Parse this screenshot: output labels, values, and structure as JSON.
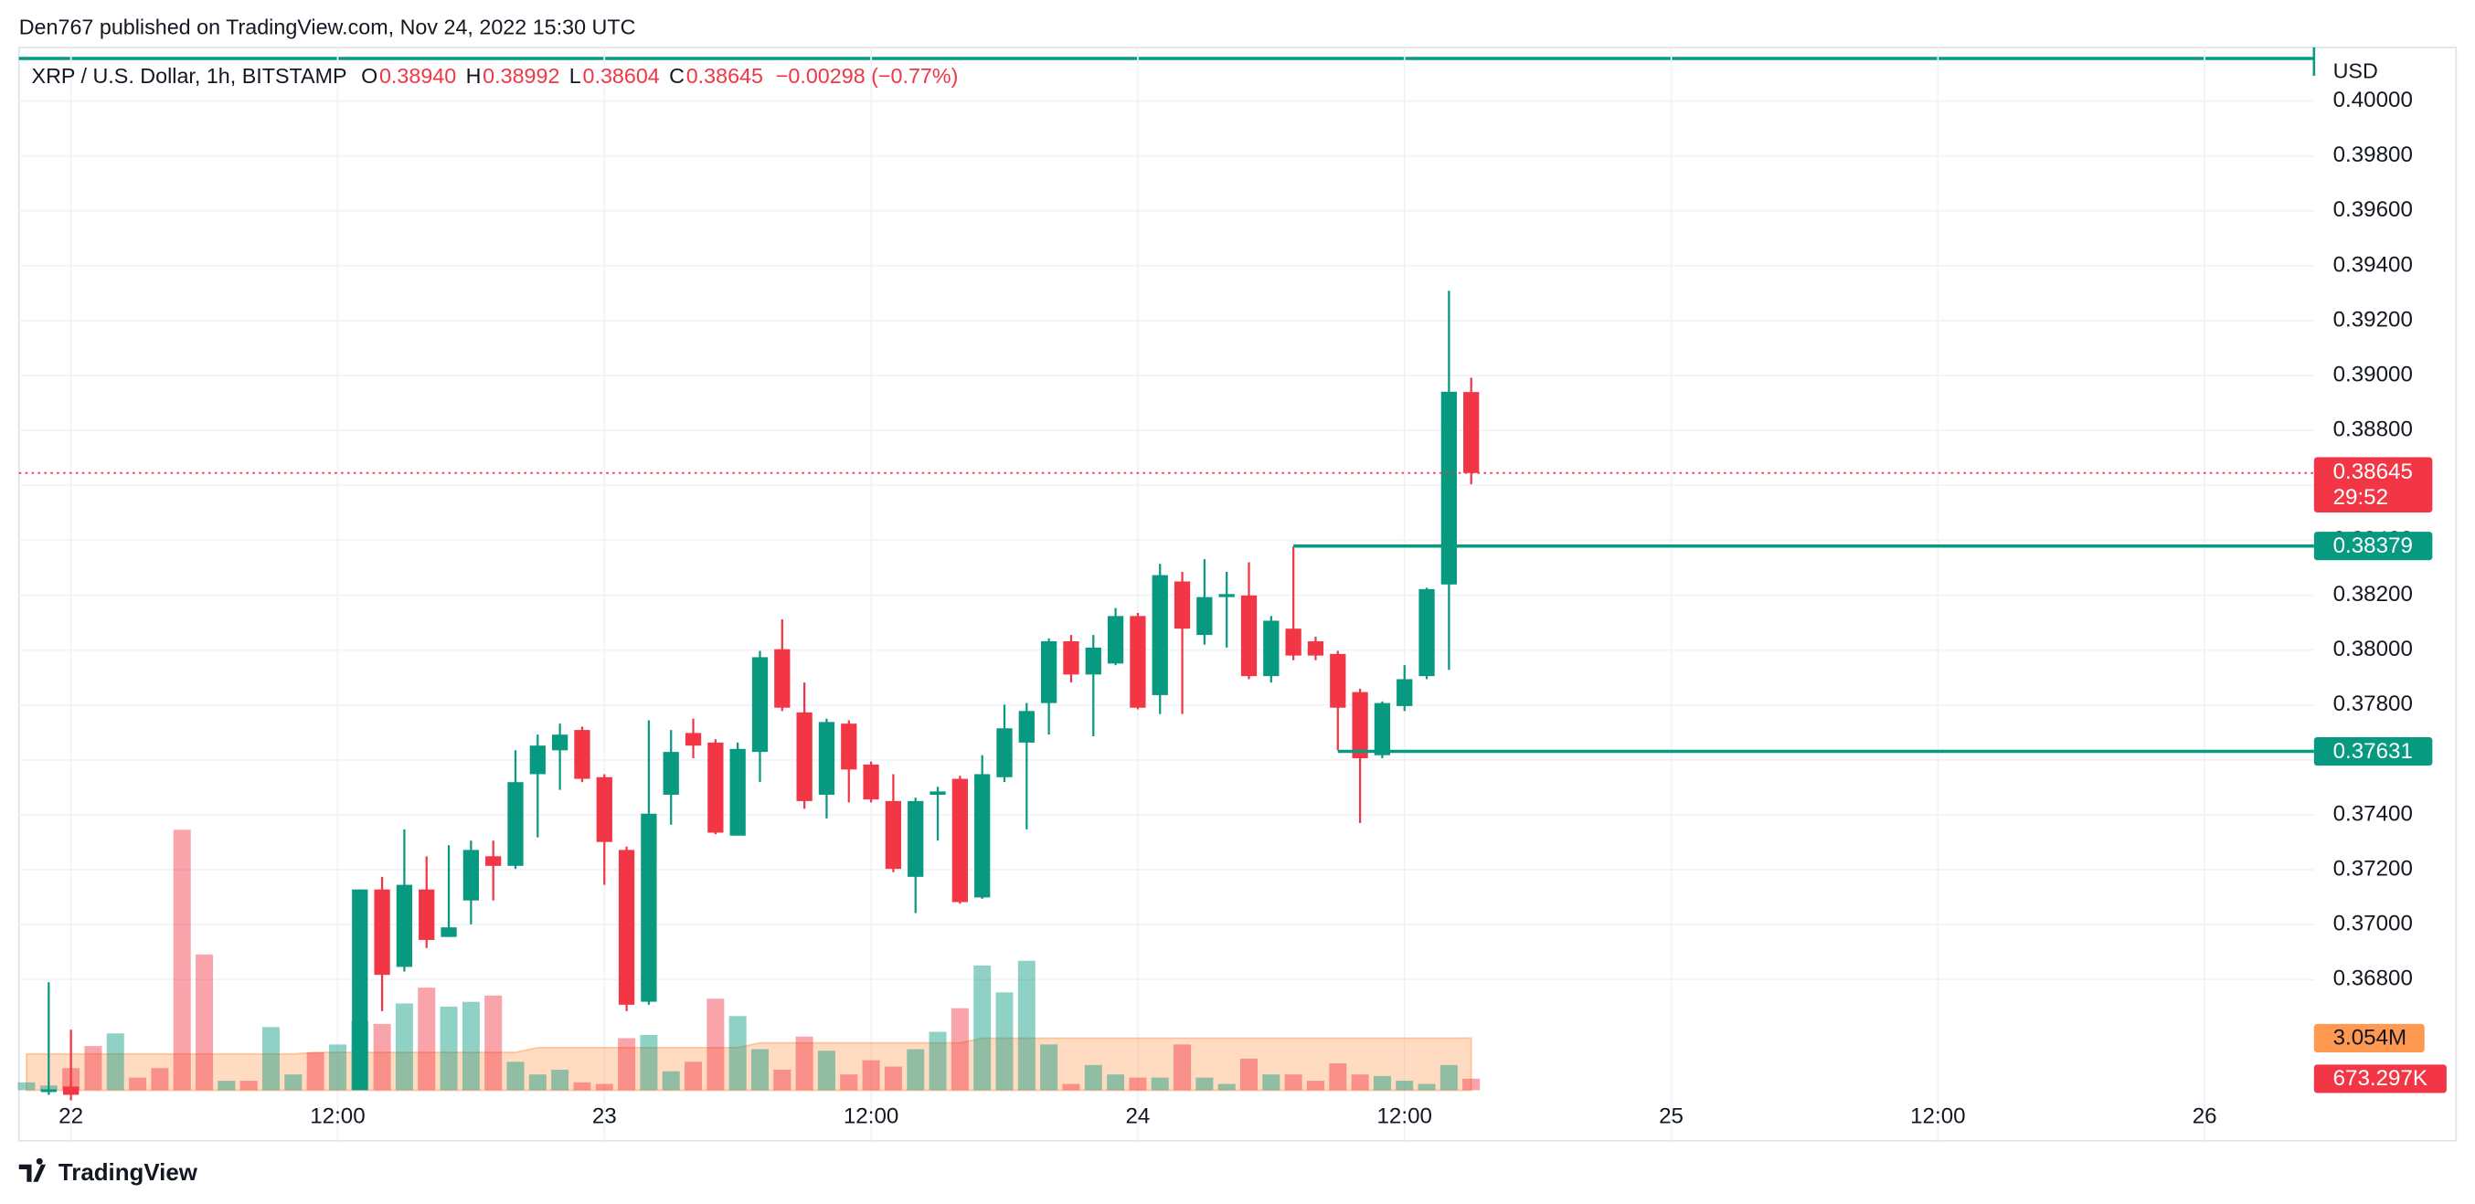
{
  "chart_data": {
    "type": "candlestick",
    "header": "Den767 published on TradingView.com, Nov 24, 2022 15:30 UTC",
    "symbol": "XRP / U.S. Dollar, 1h, BITSTAMP",
    "ohlc_legend": [
      {
        "key": "O",
        "value": 0.3894,
        "label": "0.38940"
      },
      {
        "key": "H",
        "value": 0.38992,
        "label": "0.38992"
      },
      {
        "key": "L",
        "value": 0.38604,
        "label": "0.38604"
      },
      {
        "key": "C",
        "value": 0.38645,
        "label": "0.38645"
      }
    ],
    "change_label": "−0.00298 (−0.77%)",
    "currency": "USD",
    "footer": "TradingView",
    "up_color": "#089981",
    "down_color": "#f23645",
    "grid": true,
    "x": [
      -1,
      0,
      13,
      14,
      15,
      16,
      17,
      18,
      19,
      20,
      21,
      22,
      23,
      24,
      25,
      26,
      27,
      28,
      29,
      30,
      31,
      32,
      33,
      34,
      35,
      36,
      37,
      38,
      39,
      40,
      41,
      42,
      43,
      44,
      45,
      46,
      47,
      48,
      49,
      50,
      51,
      52,
      53,
      54,
      55,
      56,
      57,
      58,
      59,
      60,
      61,
      62,
      63
    ],
    "open": [
      0.3639,
      0.3641,
      0.36397,
      0.37128,
      0.36846,
      0.37128,
      0.36955,
      0.37088,
      0.37249,
      0.37214,
      0.37548,
      0.37635,
      0.37709,
      0.37537,
      0.37272,
      0.36719,
      0.37473,
      0.37698,
      0.37663,
      0.37324,
      0.37629,
      0.38003,
      0.37773,
      0.37473,
      0.37732,
      0.37583,
      0.3745,
      0.37174,
      0.37473,
      0.37531,
      0.37099,
      0.37537,
      0.37663,
      0.37807,
      0.38032,
      0.37911,
      0.37951,
      0.38124,
      0.37836,
      0.3825,
      0.38055,
      0.38193,
      0.38199,
      0.37905,
      0.38078,
      0.38032,
      0.37986,
      0.37847,
      0.37617,
      0.37796,
      0.37905,
      0.38239,
      0.3894
    ],
    "high": [
      0.3679,
      0.36617,
      0.37128,
      0.37174,
      0.37347,
      0.37249,
      0.37289,
      0.37306,
      0.37306,
      0.37635,
      0.37692,
      0.37732,
      0.37721,
      0.37548,
      0.37284,
      0.37744,
      0.37709,
      0.3775,
      0.37675,
      0.37663,
      0.37997,
      0.38112,
      0.37882,
      0.3775,
      0.37744,
      0.37594,
      0.37548,
      0.37462,
      0.37502,
      0.37542,
      0.37617,
      0.37801,
      0.37807,
      0.38043,
      0.38055,
      0.38055,
      0.38153,
      0.38135,
      0.38314,
      0.38285,
      0.38331,
      0.38285,
      0.3832,
      0.38124,
      0.38377,
      0.38049,
      0.37997,
      0.37859,
      0.37813,
      0.37945,
      0.38227,
      0.39309,
      0.38992
    ],
    "low": [
      0.3638,
      0.3636,
      0.36397,
      0.36685,
      0.36829,
      0.36915,
      0.36955,
      0.37001,
      0.37088,
      0.37203,
      0.37318,
      0.37491,
      0.37519,
      0.37145,
      0.36685,
      0.36708,
      0.37364,
      0.37606,
      0.37329,
      0.37324,
      0.37519,
      0.37778,
      0.37422,
      0.37387,
      0.37445,
      0.37445,
      0.37191,
      0.37042,
      0.37306,
      0.37076,
      0.37094,
      0.37519,
      0.37347,
      0.37692,
      0.37882,
      0.37686,
      0.37945,
      0.37784,
      0.37767,
      0.37767,
      0.3802,
      0.38009,
      0.37894,
      0.37882,
      0.37963,
      0.37963,
      0.37635,
      0.3737,
      0.37606,
      0.37778,
      0.37894,
      0.37928,
      0.38604
    ],
    "close": [
      0.364,
      0.3638,
      0.37128,
      0.36817,
      0.37145,
      0.36944,
      0.3699,
      0.37272,
      0.37214,
      0.37519,
      0.37652,
      0.37692,
      0.37531,
      0.37301,
      0.36708,
      0.37404,
      0.37629,
      0.37652,
      0.37335,
      0.3764,
      0.37974,
      0.3779,
      0.3745,
      0.37738,
      0.37565,
      0.37456,
      0.37203,
      0.3745,
      0.37485,
      0.37082,
      0.37548,
      0.37715,
      0.37778,
      0.38032,
      0.37911,
      0.38009,
      0.38124,
      0.3779,
      0.38273,
      0.38078,
      0.38193,
      0.38204,
      0.37905,
      0.38107,
      0.3798,
      0.3798,
      0.3779,
      0.37606,
      0.37807,
      0.37894,
      0.38222,
      0.38941,
      0.38645
    ],
    "xlim": [
      -2.34,
      100.92
    ],
    "xticks": [
      {
        "value": 0,
        "label": "22"
      },
      {
        "value": 12,
        "label": "12:00"
      },
      {
        "value": 24,
        "label": "23"
      },
      {
        "value": 36,
        "label": "12:00"
      },
      {
        "value": 48,
        "label": "24"
      },
      {
        "value": 60,
        "label": "12:00"
      },
      {
        "value": 72,
        "label": "25"
      },
      {
        "value": 84,
        "label": "12:00"
      },
      {
        "value": 96,
        "label": "26"
      }
    ],
    "ylim": [
      0.36224,
      0.40155
    ],
    "yticks": [
      {
        "value": 0.368,
        "label": "0.36800"
      },
      {
        "value": 0.37,
        "label": "0.37000"
      },
      {
        "value": 0.372,
        "label": "0.37200"
      },
      {
        "value": 0.374,
        "label": "0.37400"
      },
      {
        "value": 0.376,
        "label": "0.37600"
      },
      {
        "value": 0.378,
        "label": "0.37800"
      },
      {
        "value": 0.38,
        "label": "0.38000"
      },
      {
        "value": 0.382,
        "label": "0.38200"
      },
      {
        "value": 0.384,
        "label": "0.38400"
      },
      {
        "value": 0.386,
        "label": "0.38600"
      },
      {
        "value": 0.388,
        "label": "0.38800"
      },
      {
        "value": 0.39,
        "label": "0.39000"
      },
      {
        "value": 0.392,
        "label": "0.39200"
      },
      {
        "value": 0.394,
        "label": "0.39400"
      },
      {
        "value": 0.396,
        "label": "0.39600"
      },
      {
        "value": 0.398,
        "label": "0.39800"
      },
      {
        "value": 0.4,
        "label": "0.40000"
      }
    ],
    "last_price": {
      "value": 0.38645,
      "label": "0.38645",
      "countdown": "29:52"
    },
    "price_lines": [
      {
        "value": 0.38379,
        "label": "0.38379",
        "from_x": 55
      },
      {
        "value": 0.37631,
        "label": "0.37631",
        "from_x": 57
      }
    ],
    "volume": {
      "x": [
        -2,
        -1,
        0,
        1,
        2,
        3,
        4,
        5,
        6,
        7,
        8,
        9,
        10,
        11,
        12,
        13,
        14,
        15,
        16,
        17,
        18,
        19,
        20,
        21,
        22,
        23,
        24,
        25,
        26,
        27,
        28,
        29,
        30,
        31,
        32,
        33,
        34,
        35,
        36,
        37,
        38,
        39,
        40,
        41,
        42,
        43,
        44,
        45,
        46,
        47,
        48,
        49,
        50,
        51,
        52,
        53,
        54,
        55,
        56,
        57,
        58,
        59,
        60,
        61,
        62,
        63
      ],
      "values": [
        462500,
        277500,
        1295000,
        2590000,
        3330000,
        740000,
        1295000,
        15262500,
        7955000,
        555000,
        555000,
        3700000,
        925000,
        2220000,
        2682500,
        4070000,
        3885000,
        5087500,
        6012500,
        4902500,
        5180000,
        5550000,
        1665000,
        925000,
        1202500,
        462500,
        370000,
        3052500,
        3237500,
        1110000,
        1665000,
        5365000,
        4347500,
        2405000,
        1202500,
        3145000,
        2312500,
        925000,
        1757500,
        1387500,
        2405000,
        3422500,
        4810000,
        7307500,
        5735000,
        7585000,
        2682500,
        370000,
        1480000,
        925000,
        740000,
        740000,
        2682500,
        740000,
        370000,
        1850000,
        925000,
        925000,
        555000,
        1572500,
        925000,
        832500,
        555000,
        370000,
        1480000,
        673297
      ],
      "rising": [
        true,
        true,
        false,
        false,
        true,
        false,
        false,
        false,
        false,
        true,
        false,
        true,
        true,
        false,
        true,
        true,
        false,
        true,
        false,
        true,
        true,
        false,
        true,
        true,
        true,
        false,
        false,
        false,
        true,
        true,
        false,
        false,
        true,
        true,
        false,
        false,
        true,
        false,
        false,
        false,
        true,
        true,
        false,
        true,
        true,
        true,
        true,
        false,
        true,
        true,
        false,
        true,
        false,
        true,
        true,
        false,
        true,
        false,
        false,
        false,
        false,
        true,
        true,
        true,
        true,
        false
      ],
      "ma": [
        2127500,
        2127500,
        2127500,
        2127500,
        2127500,
        2127500,
        2127500,
        2127500,
        2127500,
        2127500,
        2127500,
        2127500,
        2127500,
        2220000,
        2220000,
        2220000,
        2220000,
        2220000,
        2220000,
        2220000,
        2220000,
        2220000,
        2220000,
        2497500,
        2497500,
        2497500,
        2497500,
        2497500,
        2497500,
        2497500,
        2497500,
        2497500,
        2497500,
        2775000,
        2775000,
        2775000,
        2775000,
        2775000,
        2775000,
        2775000,
        2775000,
        2775000,
        2775000,
        3052500,
        3052500,
        3052500,
        3052500,
        3052500,
        3052500,
        3052500,
        3052500,
        3052500,
        3052500,
        3052500,
        3052500,
        3052500,
        3052500,
        3052500,
        3052500,
        3052500,
        3052500,
        3052500,
        3052500,
        3052500,
        3052500,
        3054000
      ],
      "ma_color": "#ff9850",
      "ma_last_label": "3.054M",
      "last_label": "673.297K",
      "ylim": [
        0,
        20000000
      ]
    }
  }
}
